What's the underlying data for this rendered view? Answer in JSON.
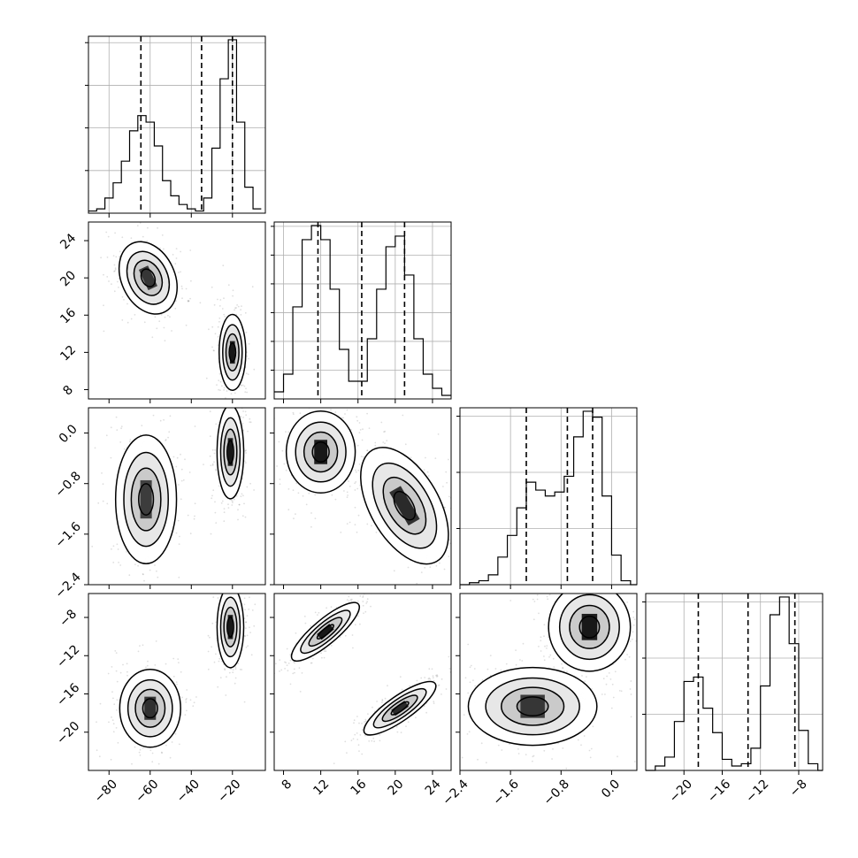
{
  "chart_data": {
    "type": "corner",
    "title": "",
    "parameters": [
      {
        "label": "",
        "range": [
          -90,
          -4
        ],
        "ticks": [
          -80,
          -60,
          -40,
          -20
        ],
        "tick_labels": [
          "−80",
          "−60",
          "−40",
          "−20"
        ],
        "quantiles": [
          -64.5,
          -35,
          -20
        ],
        "histogram": {
          "bin_edges": [
            -90,
            -86,
            -82,
            -78,
            -74,
            -70,
            -66,
            -62,
            -58,
            -54,
            -50,
            -46,
            -42,
            -38,
            -34,
            -30,
            -26,
            -22,
            -18,
            -14,
            -10,
            -6
          ],
          "counts": [
            1,
            2,
            7,
            14,
            24,
            38,
            45,
            42,
            31,
            15,
            8,
            4,
            2,
            1,
            7,
            30,
            62,
            80,
            42,
            12,
            2
          ]
        }
      },
      {
        "label": "",
        "range": [
          7,
          26
        ],
        "ticks": [
          8,
          12,
          16,
          20,
          24
        ],
        "tick_labels": [
          "8",
          "12",
          "16",
          "20",
          "24"
        ],
        "quantiles": [
          11.7,
          16.4,
          21
        ],
        "histogram": {
          "bin_edges": [
            7,
            8,
            9,
            10,
            11,
            12,
            13,
            14,
            15,
            16,
            17,
            18,
            19,
            20,
            21,
            22,
            23,
            24,
            25,
            26
          ],
          "counts": [
            2,
            7,
            26,
            45,
            49,
            45,
            31,
            14,
            5,
            5,
            17,
            31,
            43,
            46,
            35,
            17,
            7,
            3,
            1
          ]
        }
      },
      {
        "label": "",
        "range": [
          -2.4,
          0.4
        ],
        "ticks": [
          -2.4,
          -1.6,
          -0.8,
          0.0
        ],
        "tick_labels": [
          "−2.4",
          "−1.6",
          "−0.8",
          "0.0"
        ],
        "quantiles": [
          -1.35,
          -0.7,
          -0.3
        ],
        "histogram": {
          "bin_edges": [
            -2.4,
            -2.25,
            -2.1,
            -1.95,
            -1.8,
            -1.65,
            -1.5,
            -1.35,
            -1.2,
            -1.05,
            -0.9,
            -0.75,
            -0.6,
            -0.45,
            -0.3,
            -0.15,
            0.0,
            0.15,
            0.3,
            0.4
          ],
          "counts": [
            0,
            1,
            2,
            5,
            14,
            25,
            39,
            52,
            48,
            45,
            47,
            55,
            75,
            88,
            85,
            45,
            15,
            2,
            0
          ]
        }
      },
      {
        "label": "",
        "range": [
          -24,
          -5.5
        ],
        "ticks": [
          -20,
          -16,
          -12,
          -8
        ],
        "tick_labels": [
          "−20",
          "−16",
          "−12",
          "−8"
        ],
        "quantiles": [
          -18.5,
          -13.3,
          -8.4
        ],
        "histogram": {
          "bin_edges": [
            -24,
            -23,
            -22,
            -21,
            -20,
            -19,
            -18,
            -17,
            -16,
            -15,
            -14,
            -13,
            -12,
            -11,
            -10,
            -9,
            -8,
            -7,
            -6,
            -5.5
          ],
          "counts": [
            0,
            2,
            6,
            22,
            40,
            42,
            28,
            17,
            5,
            2,
            3,
            10,
            38,
            70,
            78,
            57,
            18,
            3,
            0
          ]
        }
      }
    ],
    "pairs": [
      {
        "row": 1,
        "col": 0,
        "y_ticks": [
          8,
          12,
          16,
          20,
          24
        ],
        "y_tick_labels": [
          "8",
          "12",
          "16",
          "20",
          "24"
        ],
        "modes": [
          {
            "x": -61,
            "y": 20,
            "sx": 7,
            "sy": 2.2,
            "rot": -25,
            "peak": 0.5
          },
          {
            "x": -20,
            "y": 12,
            "sx": 3.5,
            "sy": 2.2,
            "rot": 0,
            "peak": 1.0
          }
        ]
      },
      {
        "row": 2,
        "col": 0,
        "y_ticks": [
          -2.4,
          -1.6,
          -0.8,
          0.0
        ],
        "y_tick_labels": [
          "−2.4",
          "−1.6",
          "−0.8",
          "0.0"
        ],
        "modes": [
          {
            "x": -62,
            "y": -1.05,
            "sx": 8,
            "sy": 0.55,
            "rot": 0,
            "peak": 0.4
          },
          {
            "x": -21,
            "y": -0.3,
            "sx": 3.5,
            "sy": 0.4,
            "rot": 0,
            "peak": 1.0
          }
        ]
      },
      {
        "row": 2,
        "col": 1,
        "modes": [
          {
            "x": 12,
            "y": -0.3,
            "sx": 2.0,
            "sy": 0.35,
            "rot": 0,
            "peak": 1.0
          },
          {
            "x": 21,
            "y": -1.15,
            "sx": 2.0,
            "sy": 0.55,
            "rot": -30,
            "peak": 0.7
          }
        ]
      },
      {
        "row": 3,
        "col": 0,
        "y_ticks": [
          -20,
          -16,
          -12,
          -8
        ],
        "y_tick_labels": [
          "−20",
          "−16",
          "−12",
          "−8"
        ],
        "modes": [
          {
            "x": -60,
            "y": -17.5,
            "sx": 8,
            "sy": 2.2,
            "rot": 0,
            "peak": 0.6
          },
          {
            "x": -21,
            "y": -9,
            "sx": 3.5,
            "sy": 2.3,
            "rot": 0,
            "peak": 1.0
          }
        ]
      },
      {
        "row": 3,
        "col": 1,
        "modes": [
          {
            "x": 12.5,
            "y": -9.5,
            "sx": 2.5,
            "sy": 0.7,
            "rot": -40,
            "peak": 1.0
          },
          {
            "x": 20.5,
            "y": -17.5,
            "sx": 2.5,
            "sy": 0.7,
            "rot": -35,
            "peak": 0.7
          }
        ]
      },
      {
        "row": 3,
        "col": 2,
        "modes": [
          {
            "x": -0.35,
            "y": -9,
            "sx": 0.35,
            "sy": 2.5,
            "rot": 0,
            "peak": 1.0
          },
          {
            "x": -1.25,
            "y": -17.3,
            "sx": 0.55,
            "sy": 2.2,
            "rot": 0,
            "peak": 0.5
          }
        ]
      }
    ],
    "grid": true
  }
}
